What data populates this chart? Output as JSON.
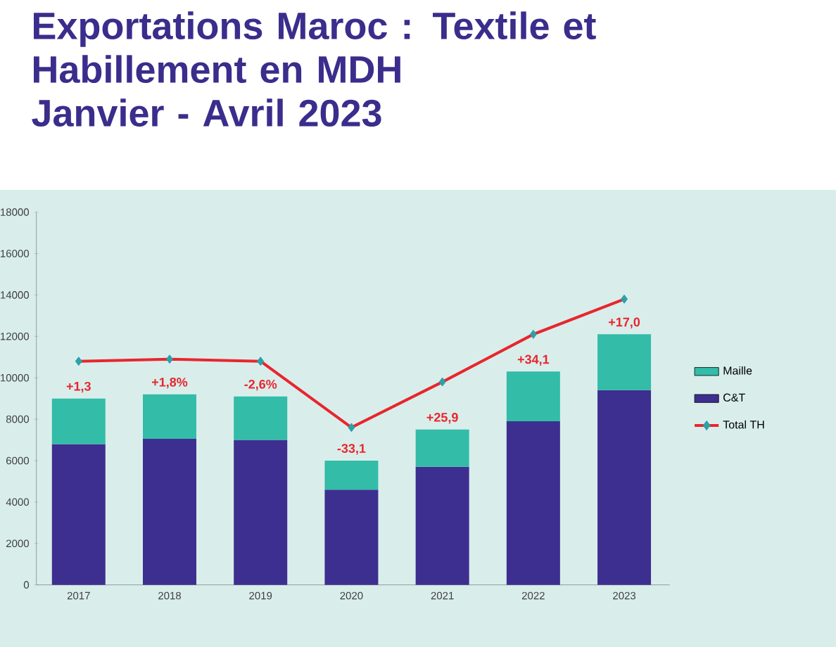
{
  "chart_data": {
    "type": "bar",
    "stacked": true,
    "title": "Exportations Maroc : Textile et Habillement en MDH",
    "subtitle": "Janvier - Avril 2023",
    "categories": [
      "2017",
      "2018",
      "2019",
      "2020",
      "2021",
      "2022",
      "2023"
    ],
    "series": [
      {
        "name": "C&T",
        "color": "#3d2f8f",
        "values": [
          6800,
          7050,
          7000,
          4600,
          5700,
          7900,
          9400
        ]
      },
      {
        "name": "Maille",
        "color": "#33bca8",
        "values": [
          2200,
          2150,
          2100,
          1400,
          1800,
          2400,
          2700
        ]
      },
      {
        "name": "Total TH",
        "type": "line",
        "color": "#e8262e",
        "marker": "diamond",
        "values": [
          10800,
          10900,
          10800,
          7600,
          9800,
          12100,
          13800
        ]
      }
    ],
    "ylim": [
      0,
      18000
    ],
    "yticks": [
      0,
      2000,
      4000,
      6000,
      8000,
      10000,
      12000,
      14000,
      16000,
      18000
    ],
    "legend": "right",
    "grid": false,
    "annotations": [
      {
        "text": "+1,3",
        "x": "2017",
        "y": 9000
      },
      {
        "text": "+1,8%",
        "x": "2018",
        "y": 9200
      },
      {
        "text": "-2,6%",
        "x": "2019",
        "y": 9100
      },
      {
        "text": "-33,1",
        "x": "2020",
        "y": 6000
      },
      {
        "text": "+25,9",
        "x": "2021",
        "y": 7500
      },
      {
        "text": "+34,1",
        "x": "2022",
        "y": 10300
      },
      {
        "text": "+17,0",
        "x": "2023",
        "y": 12100
      }
    ]
  }
}
